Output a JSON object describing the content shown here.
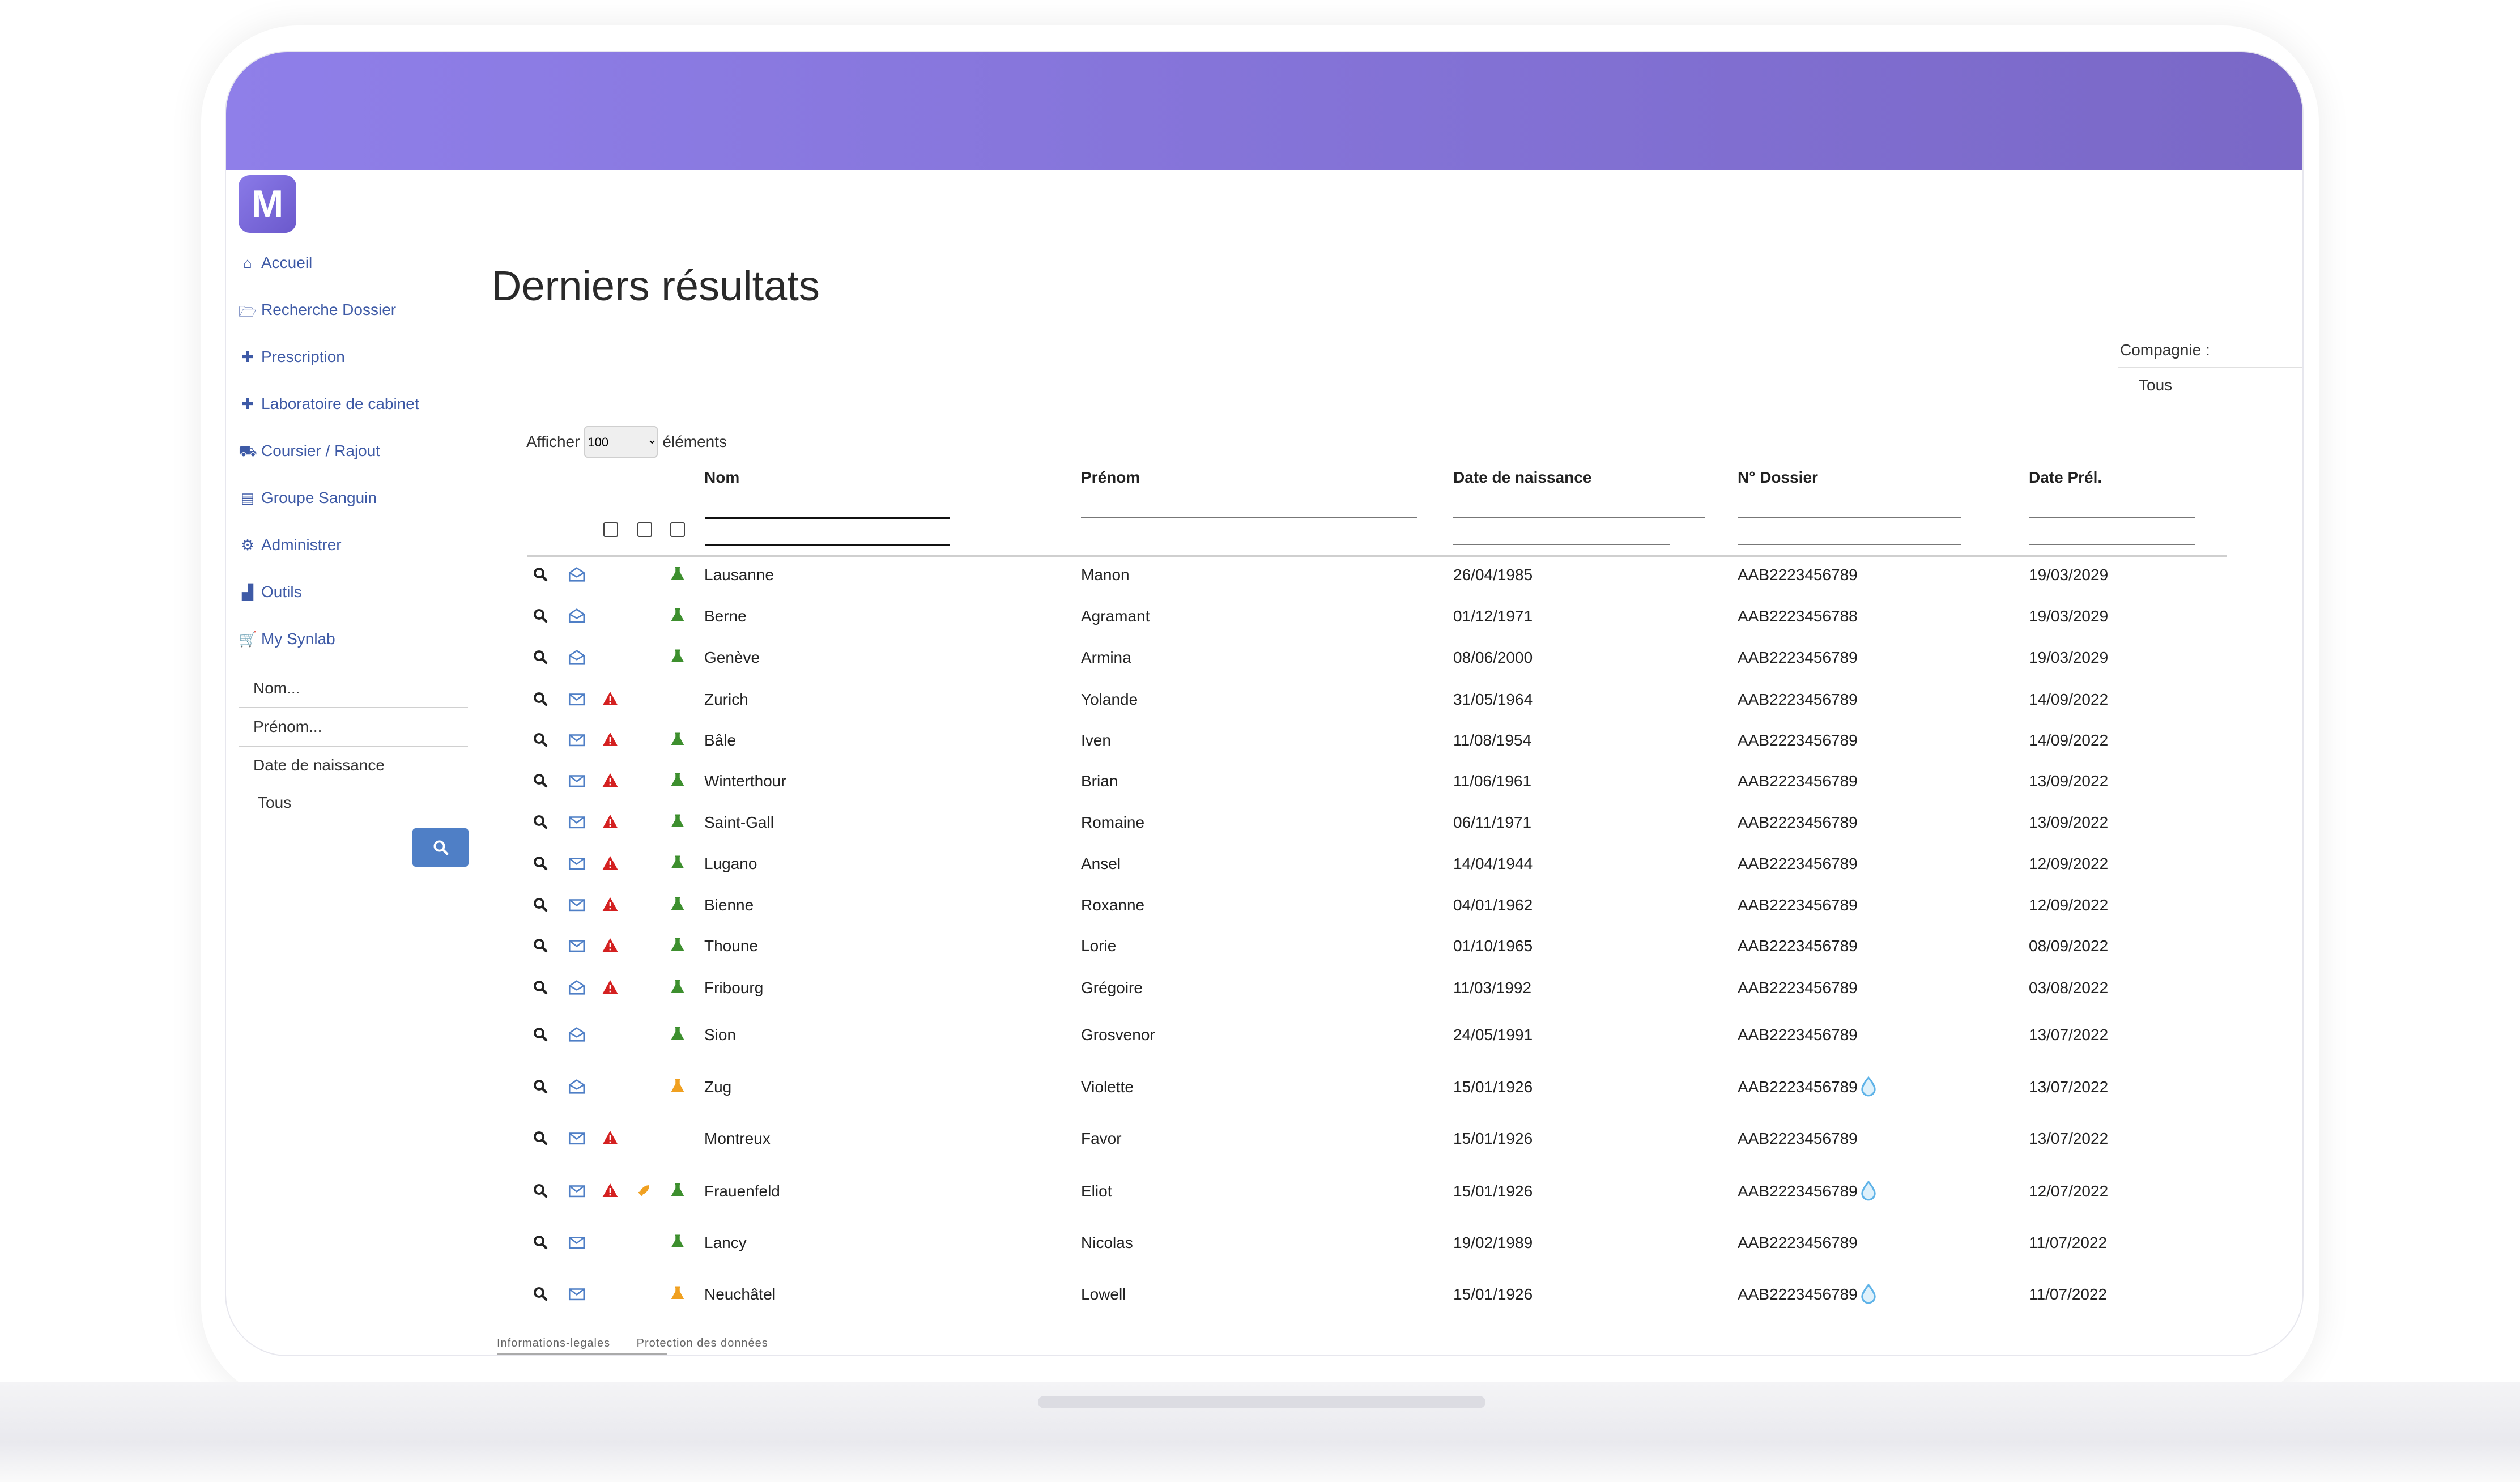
{
  "app": {
    "logo_letter": "M",
    "accent_color": "#8f7fe9",
    "button_color": "#4f7fc6"
  },
  "nav": {
    "items": [
      {
        "label": "Accueil",
        "icon": "home-icon"
      },
      {
        "label": "Recherche Dossier",
        "icon": "folder-open-icon"
      },
      {
        "label": "Prescription",
        "icon": "medkit-icon"
      },
      {
        "label": "Laboratoire de cabinet",
        "icon": "medkit-icon"
      },
      {
        "label": "Coursier / Rajout",
        "icon": "truck-icon"
      },
      {
        "label": "Groupe Sanguin",
        "icon": "id-card-icon"
      },
      {
        "label": "Administrer",
        "icon": "gear-icon"
      },
      {
        "label": "Outils",
        "icon": "chart-icon"
      },
      {
        "label": "My Synlab",
        "icon": "cart-icon"
      }
    ]
  },
  "search_panel": {
    "nom_placeholder": "Nom...",
    "prenom_placeholder": "Prénom...",
    "dob_label": "Date de naissance",
    "status_value": "Tous"
  },
  "main": {
    "title": "Derniers résultats",
    "company_label": "Compagnie :",
    "company_value": "Tous",
    "show_prefix": "Afficher",
    "show_value": "100",
    "show_suffix": "éléments"
  },
  "table": {
    "columns": [
      "Nom",
      "Prénom",
      "Date de naissance",
      "N° Dossier",
      "Date Prél."
    ],
    "rows": [
      {
        "nom": "Lausanne",
        "prenom": "Manon",
        "dob": "26/04/1985",
        "dossier": "AAB2223456789",
        "date": "19/03/2029",
        "mail": "open",
        "alert": false,
        "rocket": false,
        "flask": "green",
        "drop": false
      },
      {
        "nom": "Berne",
        "prenom": "Agramant",
        "dob": "01/12/1971",
        "dossier": "AAB2223456788",
        "date": "19/03/2029",
        "mail": "open",
        "alert": false,
        "rocket": false,
        "flask": "green",
        "drop": false
      },
      {
        "nom": "Genève",
        "prenom": "Armina",
        "dob": "08/06/2000",
        "dossier": "AAB2223456789",
        "date": "19/03/2029",
        "mail": "open",
        "alert": false,
        "rocket": false,
        "flask": "green",
        "drop": false
      },
      {
        "nom": "Zurich",
        "prenom": "Yolande",
        "dob": "31/05/1964",
        "dossier": "AAB2223456789",
        "date": "14/09/2022",
        "mail": "closed",
        "alert": true,
        "rocket": false,
        "flask": "",
        "drop": false
      },
      {
        "nom": "Bâle",
        "prenom": "Iven",
        "dob": "11/08/1954",
        "dossier": "AAB2223456789",
        "date": "14/09/2022",
        "mail": "closed",
        "alert": true,
        "rocket": false,
        "flask": "green",
        "drop": false
      },
      {
        "nom": "Winterthour",
        "prenom": "Brian",
        "dob": "11/06/1961",
        "dossier": "AAB2223456789",
        "date": "13/09/2022",
        "mail": "closed",
        "alert": true,
        "rocket": false,
        "flask": "green",
        "drop": false
      },
      {
        "nom": "Saint-Gall",
        "prenom": "Romaine",
        "dob": "06/11/1971",
        "dossier": "AAB2223456789",
        "date": "13/09/2022",
        "mail": "closed",
        "alert": true,
        "rocket": false,
        "flask": "green",
        "drop": false
      },
      {
        "nom": "Lugano",
        "prenom": "Ansel",
        "dob": "14/04/1944",
        "dossier": "AAB2223456789",
        "date": "12/09/2022",
        "mail": "closed",
        "alert": true,
        "rocket": false,
        "flask": "green",
        "drop": false
      },
      {
        "nom": "Bienne",
        "prenom": "Roxanne",
        "dob": "04/01/1962",
        "dossier": "AAB2223456789",
        "date": "12/09/2022",
        "mail": "closed",
        "alert": true,
        "rocket": false,
        "flask": "green",
        "drop": false
      },
      {
        "nom": "Thoune",
        "prenom": "Lorie",
        "dob": "01/10/1965",
        "dossier": "AAB2223456789",
        "date": "08/09/2022",
        "mail": "closed",
        "alert": true,
        "rocket": false,
        "flask": "green",
        "drop": false
      },
      {
        "nom": "Fribourg",
        "prenom": "Grégoire",
        "dob": "11/03/1992",
        "dossier": "AAB2223456789",
        "date": "03/08/2022",
        "mail": "open",
        "alert": true,
        "rocket": false,
        "flask": "green",
        "drop": false
      },
      {
        "nom": "Sion",
        "prenom": "Grosvenor",
        "dob": "24/05/1991",
        "dossier": "AAB2223456789",
        "date": "13/07/2022",
        "mail": "open",
        "alert": false,
        "rocket": false,
        "flask": "green",
        "drop": false
      },
      {
        "nom": "Zug",
        "prenom": "Violette",
        "dob": "15/01/1926",
        "dossier": "AAB2223456789",
        "date": "13/07/2022",
        "mail": "open",
        "alert": false,
        "rocket": false,
        "flask": "orange",
        "drop": true
      },
      {
        "nom": "Montreux",
        "prenom": "Favor",
        "dob": "15/01/1926",
        "dossier": "AAB2223456789",
        "date": "13/07/2022",
        "mail": "closed",
        "alert": true,
        "rocket": false,
        "flask": "",
        "drop": false
      },
      {
        "nom": "Frauenfeld",
        "prenom": "Eliot",
        "dob": "15/01/1926",
        "dossier": "AAB2223456789",
        "date": "12/07/2022",
        "mail": "closed",
        "alert": true,
        "rocket": true,
        "flask": "green",
        "drop": true
      },
      {
        "nom": "Lancy",
        "prenom": "Nicolas",
        "dob": "19/02/1989",
        "dossier": "AAB2223456789",
        "date": "11/07/2022",
        "mail": "closed",
        "alert": false,
        "rocket": false,
        "flask": "green",
        "drop": false
      },
      {
        "nom": "Neuchâtel",
        "prenom": "Lowell",
        "dob": "15/01/1926",
        "dossier": "AAB2223456789",
        "date": "11/07/2022",
        "mail": "closed",
        "alert": false,
        "rocket": false,
        "flask": "orange",
        "drop": true
      }
    ]
  },
  "footer": {
    "legal": "Informations-legales",
    "privacy": "Protection des données"
  }
}
